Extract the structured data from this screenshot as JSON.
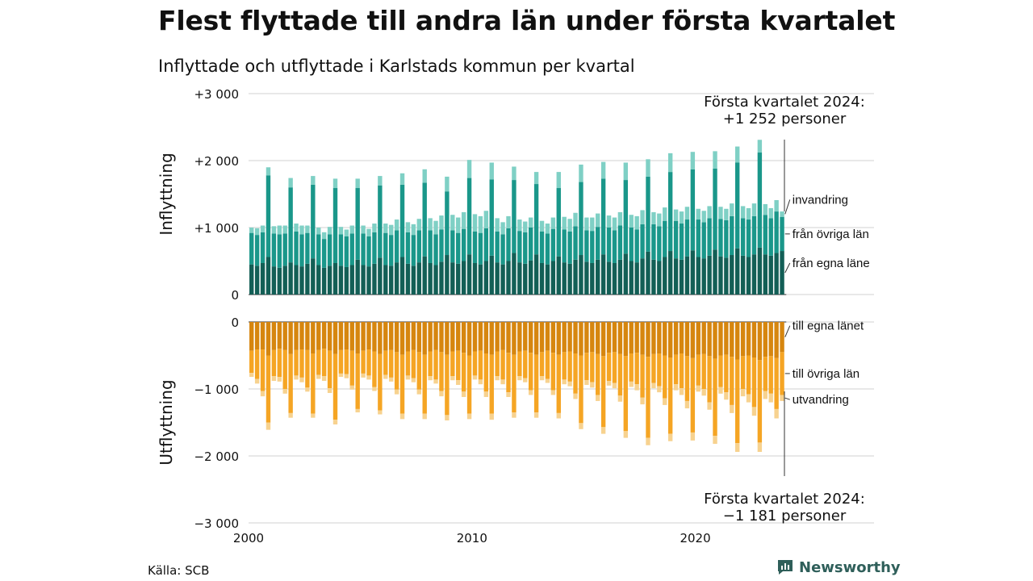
{
  "title": "Flest flyttade till andra län under första kvartalet",
  "subtitle": "Inflyttade och utflyttade i Karlstads kommun per kvartal",
  "source": "Källa: SCB",
  "brand": "Newsworthy",
  "colors": {
    "in_own": "#135f56",
    "in_other": "#1a978a",
    "in_abroad": "#7fd0c5",
    "out_own": "#d6860f",
    "out_other": "#f5a524",
    "out_abroad": "#f7d28f",
    "grid": "#d9d9d9",
    "brand": "#2f5f5a"
  },
  "chart_data": {
    "type": "bar",
    "stacked": true,
    "x_start": 2000,
    "x_step": 0.25,
    "x_ticks": [
      2000,
      2010,
      2020
    ],
    "xlim": [
      2000,
      2028
    ],
    "panels": [
      {
        "id": "inflyttning",
        "ylabel": "Inflyttning",
        "ylim": [
          0,
          3000
        ],
        "y_ticks": [
          0,
          1000,
          2000,
          3000
        ],
        "y_tick_labels": [
          "0",
          "+1 000",
          "+2 000",
          "+3 000"
        ],
        "series": [
          {
            "name": "från egna läne",
            "color_key": "in_own",
            "values": [
              450,
              430,
              470,
              560,
              420,
              400,
              430,
              480,
              440,
              420,
              460,
              540,
              440,
              400,
              430,
              470,
              430,
              410,
              440,
              520,
              440,
              420,
              460,
              550,
              440,
              430,
              480,
              560,
              460,
              430,
              480,
              570,
              470,
              440,
              490,
              590,
              480,
              460,
              500,
              600,
              470,
              450,
              500,
              580,
              480,
              450,
              500,
              620,
              480,
              460,
              510,
              600,
              470,
              450,
              500,
              570,
              480,
              460,
              520,
              590,
              490,
              470,
              520,
              600,
              490,
              470,
              520,
              610,
              500,
              480,
              540,
              640,
              520,
              500,
              560,
              650,
              540,
              520,
              570,
              660,
              560,
              540,
              580,
              670,
              570,
              550,
              590,
              690,
              580,
              560,
              600,
              700,
              600,
              580,
              620,
              650
            ]
          },
          {
            "name": "från övriga län",
            "color_key": "in_other",
            "values": [
              470,
              460,
              460,
              1220,
              490,
              500,
              480,
              1120,
              500,
              480,
              460,
              1100,
              460,
              430,
              470,
              1120,
              470,
              460,
              470,
              1070,
              470,
              450,
              470,
              1080,
              480,
              460,
              480,
              1080,
              470,
              460,
              480,
              1100,
              490,
              460,
              480,
              950,
              480,
              460,
              480,
              1140,
              470,
              470,
              490,
              1140,
              460,
              450,
              490,
              1090,
              470,
              470,
              490,
              1050,
              470,
              460,
              480,
              1020,
              490,
              480,
              500,
              1090,
              470,
              480,
              490,
              1130,
              510,
              490,
              510,
              1100,
              500,
              490,
              510,
              1120,
              530,
              520,
              540,
              1180,
              560,
              540,
              550,
              1210,
              560,
              540,
              560,
              1210,
              560,
              560,
              580,
              1280,
              560,
              560,
              570,
              1420,
              590,
              560,
              620,
              510
            ]
          },
          {
            "name": "invandring",
            "color_key": "in_abroad",
            "values": [
              80,
              100,
              100,
              120,
              110,
              130,
              120,
              140,
              120,
              130,
              110,
              130,
              100,
              100,
              110,
              140,
              110,
              100,
              120,
              140,
              120,
              110,
              130,
              140,
              140,
              150,
              160,
              170,
              150,
              160,
              170,
              200,
              180,
              200,
              210,
              220,
              230,
              230,
              250,
              270,
              260,
              250,
              260,
              250,
              200,
              180,
              180,
              200,
              170,
              160,
              150,
              180,
              160,
              150,
              170,
              240,
              190,
              190,
              200,
              260,
              190,
              200,
              200,
              250,
              180,
              190,
              200,
              260,
              190,
              200,
              210,
              260,
              180,
              190,
              200,
              280,
              170,
              180,
              190,
              260,
              160,
              170,
              180,
              260,
              180,
              170,
              190,
              240,
              180,
              170,
              190,
              190,
              160,
              150,
              170,
              80
            ]
          }
        ]
      },
      {
        "id": "utflyttning",
        "ylabel": "Utflyttning",
        "ylim": [
          -3000,
          0
        ],
        "y_ticks": [
          0,
          -1000,
          -2000,
          -3000
        ],
        "y_tick_labels": [
          "0",
          "−1 000",
          "−2 000",
          "−3 000"
        ],
        "series": [
          {
            "name": "till egna länet",
            "color_key": "out_own",
            "values": [
              -430,
              -410,
              -410,
              -500,
              -420,
              -400,
              -420,
              -480,
              -420,
              -410,
              -420,
              -470,
              -420,
              -400,
              -430,
              -480,
              -420,
              -410,
              -430,
              -470,
              -430,
              -410,
              -440,
              -480,
              -430,
              -420,
              -450,
              -490,
              -440,
              -420,
              -450,
              -490,
              -440,
              -420,
              -450,
              -490,
              -440,
              -430,
              -460,
              -500,
              -440,
              -430,
              -470,
              -490,
              -440,
              -420,
              -460,
              -490,
              -440,
              -430,
              -460,
              -490,
              -450,
              -430,
              -460,
              -490,
              -450,
              -440,
              -470,
              -500,
              -460,
              -450,
              -480,
              -510,
              -460,
              -450,
              -480,
              -510,
              -470,
              -460,
              -490,
              -520,
              -480,
              -470,
              -500,
              -530,
              -490,
              -470,
              -510,
              -540,
              -490,
              -480,
              -510,
              -550,
              -500,
              -490,
              -520,
              -560,
              -510,
              -500,
              -530,
              -570,
              -520,
              -510,
              -540,
              -450
            ]
          },
          {
            "name": "till övriga län",
            "color_key": "out_other",
            "values": [
              -330,
              -440,
              -620,
              -1000,
              -390,
              -420,
              -580,
              -880,
              -380,
              -420,
              -560,
              -900,
              -370,
              -410,
              -560,
              -980,
              -350,
              -370,
              -520,
              -830,
              -340,
              -390,
              -530,
              -840,
              -360,
              -410,
              -560,
              -880,
              -360,
              -420,
              -560,
              -880,
              -370,
              -440,
              -580,
              -900,
              -370,
              -440,
              -580,
              -870,
              -360,
              -430,
              -570,
              -880,
              -370,
              -440,
              -590,
              -860,
              -370,
              -410,
              -560,
              -860,
              -360,
              -420,
              -560,
              -870,
              -410,
              -450,
              -600,
              -1010,
              -410,
              -450,
              -610,
              -1060,
              -420,
              -460,
              -620,
              -1120,
              -420,
              -470,
              -640,
              -1210,
              -430,
              -490,
              -640,
              -1140,
              -440,
              -520,
              -670,
              -1110,
              -460,
              -520,
              -690,
              -1150,
              -470,
              -560,
              -720,
              -1250,
              -490,
              -580,
              -740,
              -1230,
              -510,
              -560,
              -760,
              -640
            ]
          },
          {
            "name": "utvandring",
            "color_key": "out_abroad",
            "values": [
              -60,
              -70,
              -80,
              -110,
              -70,
              -70,
              -70,
              -70,
              -60,
              -70,
              -60,
              -60,
              -60,
              -70,
              -70,
              -70,
              -50,
              -60,
              -60,
              -50,
              -60,
              -60,
              -60,
              -60,
              -60,
              -60,
              -70,
              -80,
              -60,
              -60,
              -70,
              -80,
              -60,
              -60,
              -80,
              -80,
              -60,
              -70,
              -80,
              -80,
              -60,
              -70,
              -80,
              -90,
              -60,
              -70,
              -70,
              -80,
              -60,
              -60,
              -70,
              -80,
              -60,
              -60,
              -70,
              -80,
              -70,
              -70,
              -80,
              -90,
              -70,
              -80,
              -90,
              -100,
              -70,
              -80,
              -90,
              -100,
              -80,
              -90,
              -100,
              -110,
              -80,
              -90,
              -100,
              -110,
              -90,
              -100,
              -110,
              -120,
              -90,
              -100,
              -110,
              -120,
              -100,
              -110,
              -120,
              -130,
              -110,
              -120,
              -130,
              -140,
              -120,
              -130,
              -140,
              -90
            ]
          }
        ]
      }
    ],
    "annotations": [
      {
        "text": [
          "Första kvartalet 2024:",
          "+1 252 personer"
        ],
        "panel": "inflyttning"
      },
      {
        "text": [
          "Första kvartalet 2024:",
          "−1 181 personer"
        ],
        "panel": "utflyttning"
      }
    ]
  }
}
